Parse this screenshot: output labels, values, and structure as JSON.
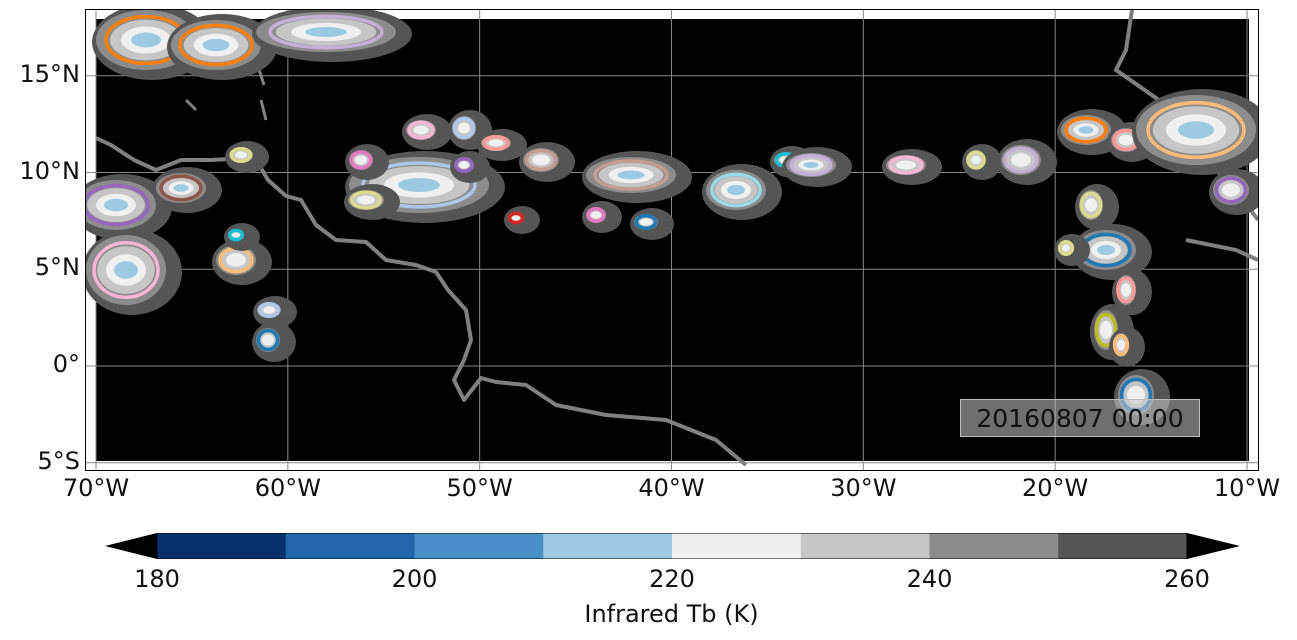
{
  "map": {
    "timestamp": "20160807 00:00",
    "lon_range": [
      -70,
      -10
    ],
    "lat_range": [
      -5.5,
      18.5
    ],
    "lat_ticks": [
      {
        "value": 15,
        "label": "15°N"
      },
      {
        "value": 10,
        "label": "10°N"
      },
      {
        "value": 5,
        "label": "5°N"
      },
      {
        "value": 0,
        "label": "0°"
      },
      {
        "value": -5,
        "label": "5°S"
      }
    ],
    "lon_ticks": [
      {
        "value": -70,
        "label": "70°W"
      },
      {
        "value": -60,
        "label": "60°W"
      },
      {
        "value": -50,
        "label": "50°W"
      },
      {
        "value": -40,
        "label": "40°W"
      },
      {
        "value": -30,
        "label": "30°W"
      },
      {
        "value": -20,
        "label": "20°W"
      },
      {
        "value": -10,
        "label": "10°W"
      }
    ],
    "gridlines": true,
    "background_color": "#000000",
    "coastline_color": "#808080"
  },
  "colorbar": {
    "title": "Infrared Tb (K)",
    "range": [
      180,
      260
    ],
    "extend": "both",
    "colors": [
      "#08306b",
      "#2166ac",
      "#4a90c8",
      "#9ecae1",
      "#f0f0f0",
      "#c6c6c6",
      "#8c8c8c",
      "#555555"
    ],
    "under_color": "#000000",
    "over_color": "#000000",
    "ticks": [
      {
        "value": 180,
        "label": "180"
      },
      {
        "value": 200,
        "label": "200"
      },
      {
        "value": 220,
        "label": "220"
      },
      {
        "value": 240,
        "label": "240"
      },
      {
        "value": 260,
        "label": "260"
      }
    ]
  },
  "tracked_cell_colors": [
    "#1f77b4",
    "#ff7f0e",
    "#2ca02c",
    "#d62728",
    "#9467bd",
    "#8c564b",
    "#e377c2",
    "#bcbd22",
    "#17becf",
    "#aec7e8",
    "#ffbb78",
    "#98df8a",
    "#ff9896",
    "#c5b0d5",
    "#c49c94",
    "#f7b6d2",
    "#dbdb8d",
    "#9edae5"
  ]
}
